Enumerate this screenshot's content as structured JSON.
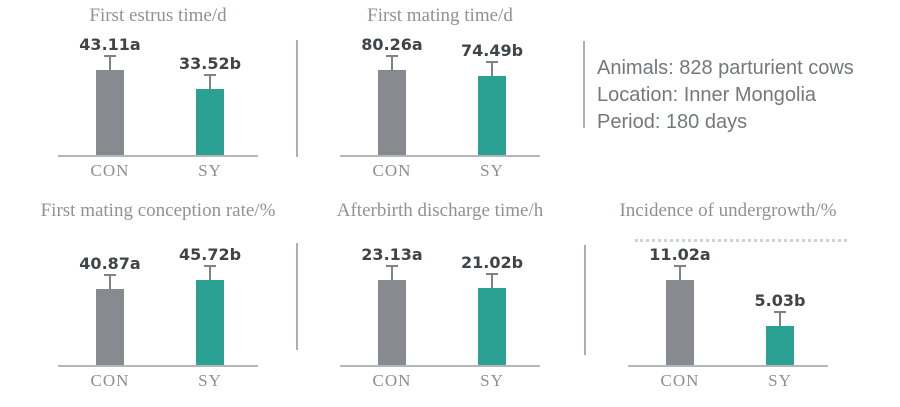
{
  "figure": {
    "background": "#ffffff",
    "colors": {
      "con_bar": "#878b8f",
      "sy_bar": "#2ba194",
      "baseline": "#b4b7ba",
      "divider": "#abaeb2",
      "title_text": "#8e9296",
      "value_text": "#3f4449",
      "category_text": "#8a8f94",
      "info_text": "#73787c",
      "error_bar": "#7d8286"
    },
    "info_panel": {
      "lines": [
        "Animals: 828 parturient cows",
        "Location: Inner Mongolia",
        "Period: 180 days"
      ]
    }
  },
  "chart_data": [
    {
      "type": "bar",
      "title": "First estrus time/d",
      "categories": [
        "CON",
        "SY"
      ],
      "values": [
        43.11,
        33.52
      ],
      "value_labels": [
        "43.11a",
        "33.52b"
      ],
      "series_colors": [
        "#878b8f",
        "#2ba194"
      ],
      "error_bars": true,
      "legend": "none",
      "grid": false
    },
    {
      "type": "bar",
      "title": "First mating time/d",
      "categories": [
        "CON",
        "SY"
      ],
      "values": [
        80.26,
        74.49
      ],
      "value_labels": [
        "80.26a",
        "74.49b"
      ],
      "series_colors": [
        "#878b8f",
        "#2ba194"
      ],
      "error_bars": true,
      "legend": "none",
      "grid": false
    },
    {
      "type": "bar",
      "title": "First mating conception rate/%",
      "categories": [
        "CON",
        "SY"
      ],
      "values": [
        40.87,
        45.72
      ],
      "value_labels": [
        "40.87a",
        "45.72b"
      ],
      "series_colors": [
        "#878b8f",
        "#2ba194"
      ],
      "error_bars": true,
      "legend": "none",
      "grid": false
    },
    {
      "type": "bar",
      "title": "Afterbirth discharge time/h",
      "categories": [
        "CON",
        "SY"
      ],
      "values": [
        23.13,
        21.02
      ],
      "value_labels": [
        "23.13a",
        "21.02b"
      ],
      "series_colors": [
        "#878b8f",
        "#2ba194"
      ],
      "error_bars": true,
      "legend": "none",
      "grid": false
    },
    {
      "type": "bar",
      "title": "Incidence of undergrowth/%",
      "categories": [
        "CON",
        "SY"
      ],
      "values": [
        11.02,
        5.03
      ],
      "value_labels": [
        "11.02a",
        "5.03b"
      ],
      "series_colors": [
        "#878b8f",
        "#2ba194"
      ],
      "error_bars": true,
      "legend": "none",
      "grid": false
    }
  ]
}
